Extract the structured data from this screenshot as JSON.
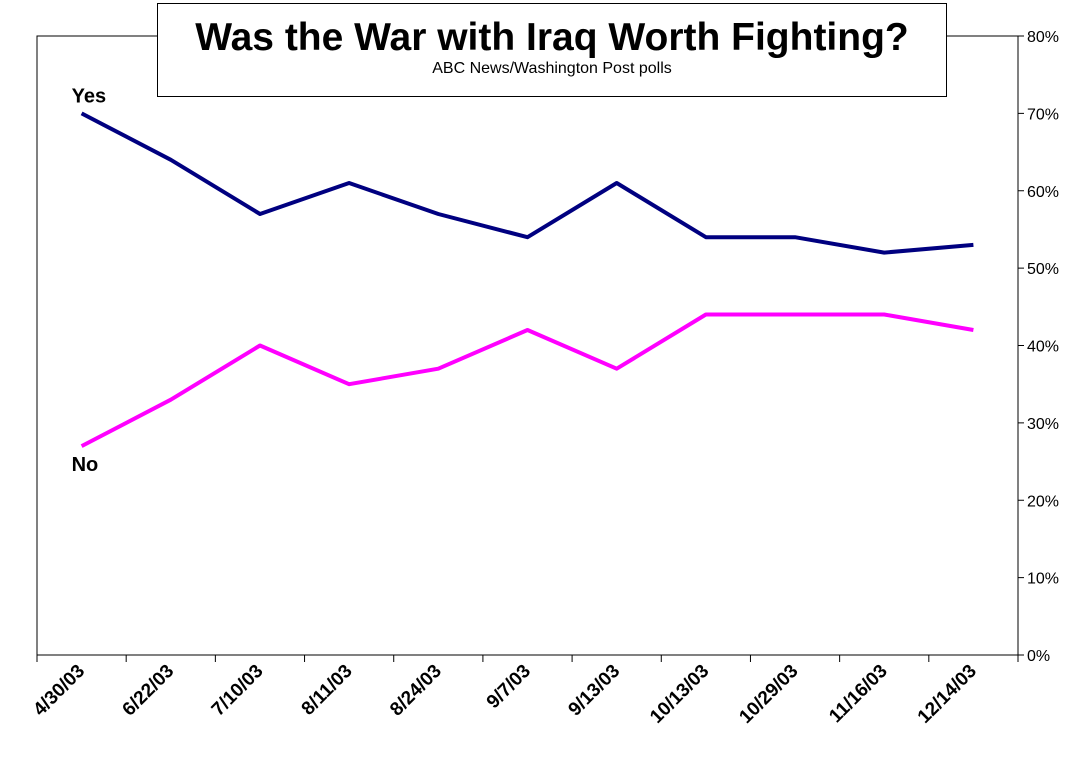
{
  "chart_data": {
    "type": "line",
    "title": "Was the War with Iraq Worth Fighting?",
    "subtitle": "ABC News/Washington Post polls",
    "x": [
      "4/30/03",
      "6/22/03",
      "7/10/03",
      "8/11/03",
      "8/24/03",
      "9/7/03",
      "9/13/03",
      "10/13/03",
      "10/29/03",
      "11/16/03",
      "12/14/03"
    ],
    "series": [
      {
        "name": "Yes",
        "color": "#000080",
        "values": [
          70,
          64,
          57,
          61,
          57,
          54,
          61,
          54,
          54,
          52,
          53
        ]
      },
      {
        "name": "No",
        "color": "#FF00FF",
        "values": [
          27,
          33,
          40,
          35,
          37,
          42,
          37,
          44,
          44,
          44,
          42
        ]
      }
    ],
    "y_ticks": [
      "0%",
      "10%",
      "20%",
      "30%",
      "40%",
      "50%",
      "60%",
      "70%",
      "80%"
    ],
    "ylim": [
      0,
      80
    ],
    "y_axis_side": "right",
    "grid": false,
    "legend": "none"
  }
}
